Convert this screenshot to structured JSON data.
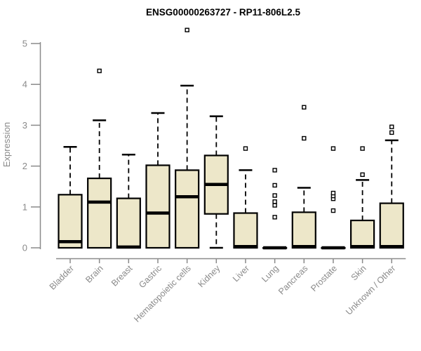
{
  "chart_data": {
    "type": "boxplot",
    "title": "ENSG00000263727 - RP11-806L2.5",
    "ylabel": "Expression",
    "xlabel": "",
    "ylim": [
      0,
      5
    ],
    "yticks": [
      "0",
      "1",
      "2",
      "3",
      "4",
      "5"
    ],
    "grid": false,
    "legend": "none",
    "colors": {
      "box_fill": "#ede7c9",
      "box_stroke": "#000000",
      "median_stroke": "#000000",
      "whisker_stroke": "#000000",
      "axis_color": "#8a8a8a",
      "title_color": "#000000",
      "background": "#ffffff"
    },
    "categories": [
      "Bladder",
      "Brain",
      "Breast",
      "Gastric",
      "Hematopoietic cells",
      "Kidney",
      "Liver",
      "Lung",
      "Pancreas",
      "Prostate",
      "Skin",
      "Unknown / Other"
    ],
    "series": [
      {
        "category": "Bladder",
        "whisker_low": 0,
        "q1": 0,
        "median": 0.15,
        "q3": 1.3,
        "whisker_high": 2.47,
        "outliers": []
      },
      {
        "category": "Brain",
        "whisker_low": 0,
        "q1": 0,
        "median": 1.12,
        "q3": 1.7,
        "whisker_high": 3.12,
        "outliers": [
          4.33
        ]
      },
      {
        "category": "Breast",
        "whisker_low": 0,
        "q1": 0,
        "median": 0.02,
        "q3": 1.21,
        "whisker_high": 2.28,
        "outliers": []
      },
      {
        "category": "Gastric",
        "whisker_low": 0,
        "q1": 0,
        "median": 0.85,
        "q3": 2.02,
        "whisker_high": 3.3,
        "outliers": []
      },
      {
        "category": "Hematopoietic cells",
        "whisker_low": 0,
        "q1": 0,
        "median": 1.25,
        "q3": 1.9,
        "whisker_high": 3.97,
        "outliers": [
          5.33
        ]
      },
      {
        "category": "Kidney",
        "whisker_low": 0,
        "q1": 0.83,
        "median": 1.55,
        "q3": 2.26,
        "whisker_high": 3.22,
        "outliers": []
      },
      {
        "category": "Liver",
        "whisker_low": 0,
        "q1": 0,
        "median": 0.03,
        "q3": 0.85,
        "whisker_high": 1.9,
        "outliers": [
          2.43
        ]
      },
      {
        "category": "Lung",
        "whisker_low": 0,
        "q1": 0,
        "median": 0,
        "q3": 0,
        "whisker_high": 0,
        "outliers": [
          0.75,
          1.04,
          1.13,
          1.28,
          1.53,
          1.9
        ]
      },
      {
        "category": "Pancreas",
        "whisker_low": 0,
        "q1": 0,
        "median": 0.03,
        "q3": 0.87,
        "whisker_high": 1.47,
        "outliers": [
          2.68,
          3.44
        ]
      },
      {
        "category": "Prostate",
        "whisker_low": 0,
        "q1": 0,
        "median": 0,
        "q3": 0,
        "whisker_high": 0,
        "outliers": [
          0.91,
          1.2,
          1.27,
          1.34,
          2.43
        ]
      },
      {
        "category": "Skin",
        "whisker_low": 0,
        "q1": 0,
        "median": 0.03,
        "q3": 0.67,
        "whisker_high": 1.66,
        "outliers": [
          1.79,
          2.43
        ]
      },
      {
        "category": "Unknown / Other",
        "whisker_low": 0,
        "q1": 0,
        "median": 0.03,
        "q3": 1.09,
        "whisker_high": 2.63,
        "outliers": [
          2.82,
          2.96
        ]
      }
    ]
  }
}
